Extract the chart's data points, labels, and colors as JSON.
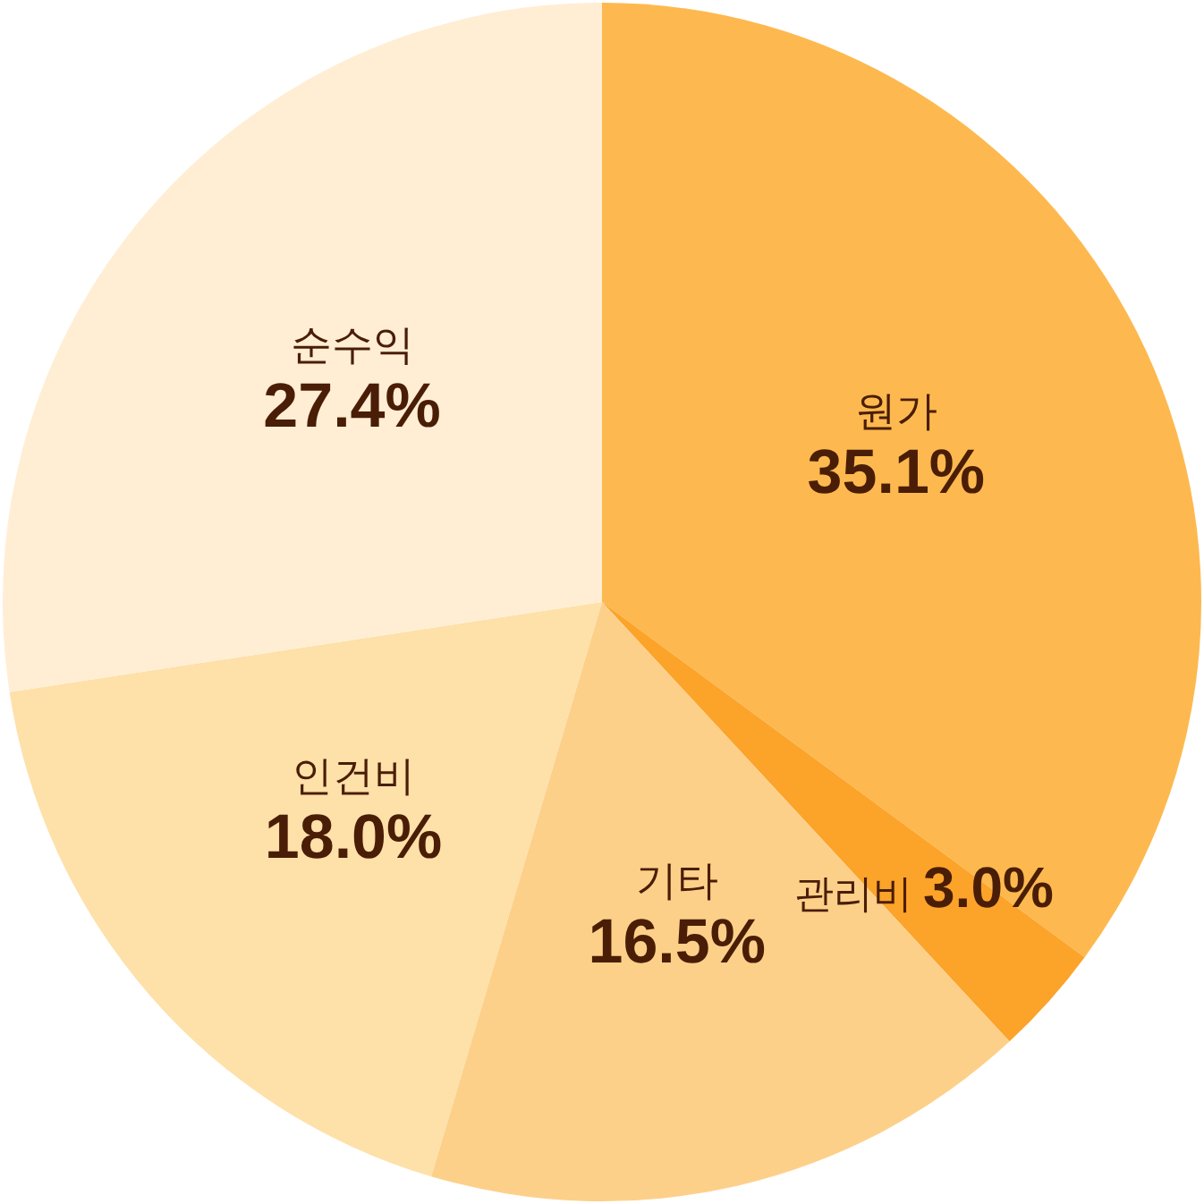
{
  "chart_data": {
    "type": "pie",
    "categories": [
      "원가",
      "관리비",
      "기타",
      "인건비",
      "순수익"
    ],
    "values": [
      35.1,
      3.0,
      16.5,
      18.0,
      27.4
    ],
    "colors": [
      "#fdb94f",
      "#fca329",
      "#fdd08a",
      "#fee0a9",
      "#ffeed3"
    ],
    "value_labels": [
      "35.1%",
      "3.0%",
      "16.5%",
      "18.0%",
      "27.4%"
    ]
  }
}
